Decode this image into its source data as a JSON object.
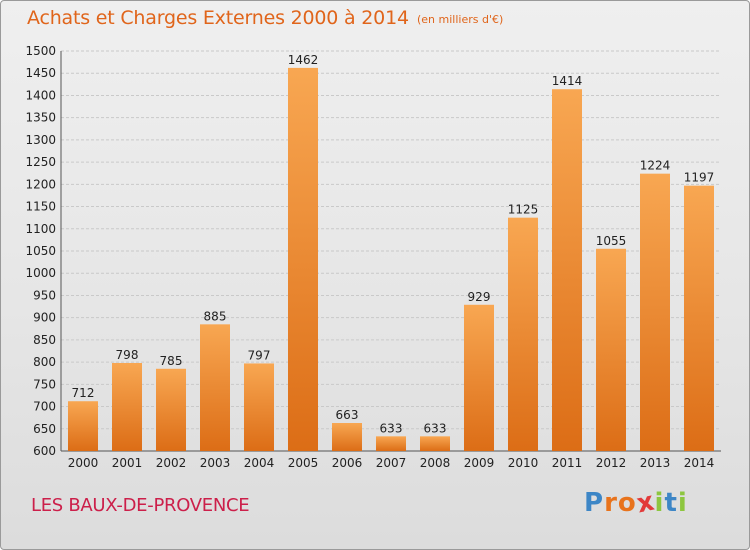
{
  "header": {
    "title": "Achats et Charges Externes 2000 à 2014",
    "unit": "(en milliers d'€)"
  },
  "footer": {
    "location": "LES BAUX-DE-PROVENCE",
    "logo_letters": [
      "P",
      "r",
      "o",
      "x",
      "i",
      "t",
      "i"
    ]
  },
  "colors": {
    "title": "#e0651b",
    "location": "#cc1f4a",
    "bar_light": "#f8a752",
    "bar_dark": "#dc6d16",
    "logo": [
      "#3d86c6",
      "#e8731c",
      "#e8731c",
      "#e23a3a",
      "#8dc63f",
      "#3d86c6",
      "#8dc63f"
    ]
  },
  "chart_data": {
    "type": "bar",
    "title": "Achats et Charges Externes 2000 à 2014",
    "ylabel": "en milliers d'€",
    "xlabel": "",
    "categories": [
      "2000",
      "2001",
      "2002",
      "2003",
      "2004",
      "2005",
      "2006",
      "2007",
      "2008",
      "2009",
      "2010",
      "2011",
      "2012",
      "2013",
      "2014"
    ],
    "values": [
      712,
      798,
      785,
      885,
      797,
      1462,
      663,
      633,
      633,
      929,
      1125,
      1414,
      1055,
      1224,
      1197
    ],
    "ylim": [
      600,
      1500
    ],
    "yticks": [
      600,
      650,
      700,
      750,
      800,
      850,
      900,
      950,
      1000,
      1050,
      1100,
      1150,
      1200,
      1250,
      1300,
      1350,
      1400,
      1450,
      1500
    ],
    "grid": true,
    "legend": "none"
  }
}
